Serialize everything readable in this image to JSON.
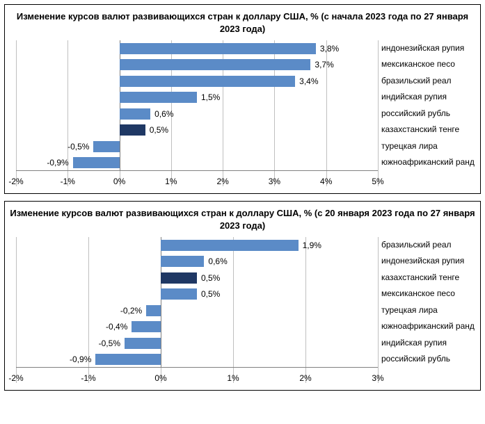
{
  "charts": [
    {
      "title": "Изменение курсов валют развивающихся стран к доллару США, % (с начала 2023 года по 27 января 2023 года)",
      "xmin": -2,
      "xmax": 5,
      "xticks": [
        -2,
        -1,
        0,
        1,
        2,
        3,
        4,
        5
      ],
      "bar_fill": "#5b8bc7",
      "highlight_fill": "#1f3864",
      "grid_color": "#bfbfbf",
      "label_fontsize": 12,
      "title_fontsize": 13,
      "bars": [
        {
          "label": "индонезийская рупия",
          "value": 3.8,
          "text": "3,8%",
          "highlight": false
        },
        {
          "label": "мексиканское песо",
          "value": 3.7,
          "text": "3,7%",
          "highlight": false
        },
        {
          "label": "бразильский реал",
          "value": 3.4,
          "text": "3,4%",
          "highlight": false
        },
        {
          "label": "индийская рупия",
          "value": 1.5,
          "text": "1,5%",
          "highlight": false
        },
        {
          "label": "российский рубль",
          "value": 0.6,
          "text": "0,6%",
          "highlight": false
        },
        {
          "label": "казахстанский тенге",
          "value": 0.5,
          "text": "0,5%",
          "highlight": true
        },
        {
          "label": "турецкая лира",
          "value": -0.5,
          "text": "-0,5%",
          "highlight": false
        },
        {
          "label": "южноафриканский ранд",
          "value": -0.9,
          "text": "-0,9%",
          "highlight": false
        }
      ]
    },
    {
      "title": "Изменение курсов валют развивающихся стран к доллару США, % (с 20 января 2023 года по 27 января 2023 года)",
      "xmin": -2,
      "xmax": 3,
      "xticks": [
        -2,
        -1,
        0,
        1,
        2,
        3
      ],
      "bar_fill": "#5b8bc7",
      "highlight_fill": "#1f3864",
      "grid_color": "#bfbfbf",
      "label_fontsize": 12,
      "title_fontsize": 13,
      "bars": [
        {
          "label": "бразильский реал",
          "value": 1.9,
          "text": "1,9%",
          "highlight": false
        },
        {
          "label": "индонезийская рупия",
          "value": 0.6,
          "text": "0,6%",
          "highlight": false
        },
        {
          "label": "казахстанский тенге",
          "value": 0.5,
          "text": "0,5%",
          "highlight": true
        },
        {
          "label": "мексиканское песо",
          "value": 0.5,
          "text": "0,5%",
          "highlight": false
        },
        {
          "label": "турецкая лира",
          "value": -0.2,
          "text": "-0,2%",
          "highlight": false
        },
        {
          "label": "южноафриканский ранд",
          "value": -0.4,
          "text": "-0,4%",
          "highlight": false
        },
        {
          "label": "индийская рупия",
          "value": -0.5,
          "text": "-0,5%",
          "highlight": false
        },
        {
          "label": "российский рубль",
          "value": -0.9,
          "text": "-0,9%",
          "highlight": false
        }
      ]
    }
  ]
}
